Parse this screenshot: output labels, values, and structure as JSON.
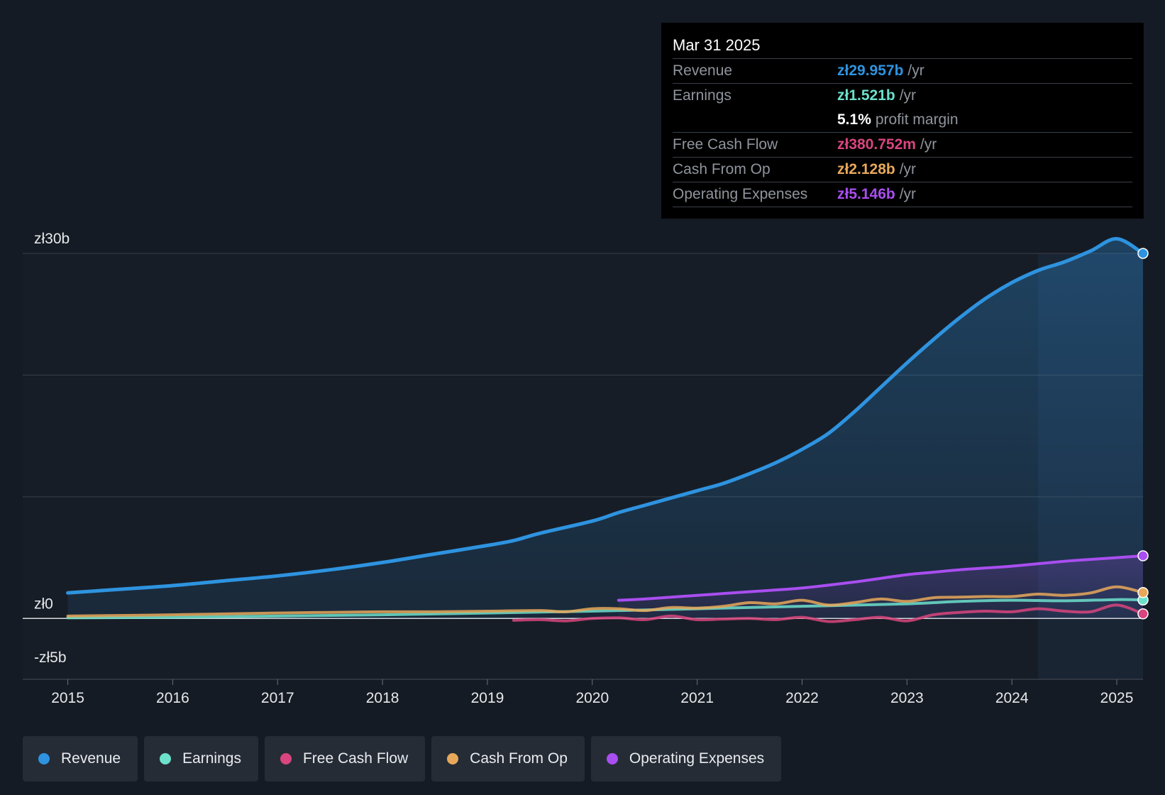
{
  "colors": {
    "revenue": "#2e93e0",
    "earnings": "#6de0cc",
    "fcf": "#d9457e",
    "cfo": "#e8a85a",
    "opex": "#a94ef0",
    "grid": "#3a4048",
    "axis_text": "#e6e8ea"
  },
  "tooltip": {
    "date": "Mar 31 2025",
    "rows": [
      {
        "label": "Revenue",
        "value": "zł29.957b",
        "unit": "/yr",
        "color": "#2e93e0"
      },
      {
        "label": "Earnings",
        "value": "zł1.521b",
        "unit": "/yr",
        "color": "#6de0cc"
      },
      {
        "label": "",
        "value": "5.1%",
        "unit": "profit margin",
        "color": "#ffffff"
      },
      {
        "label": "Free Cash Flow",
        "value": "zł380.752m",
        "unit": "/yr",
        "color": "#d9457e"
      },
      {
        "label": "Cash From Op",
        "value": "zł2.128b",
        "unit": "/yr",
        "color": "#e8a85a"
      },
      {
        "label": "Operating Expenses",
        "value": "zł5.146b",
        "unit": "/yr",
        "color": "#a94ef0"
      }
    ]
  },
  "legend": {
    "items": [
      {
        "label": "Revenue",
        "color": "#2e93e0"
      },
      {
        "label": "Earnings",
        "color": "#6de0cc"
      },
      {
        "label": "Free Cash Flow",
        "color": "#d9457e"
      },
      {
        "label": "Cash From Op",
        "color": "#e8a85a"
      },
      {
        "label": "Operating Expenses",
        "color": "#a94ef0"
      }
    ]
  },
  "chart_data": {
    "type": "area",
    "title": "",
    "xlabel": "",
    "ylabel": "",
    "ylim": [
      -5,
      30
    ],
    "y_tick_labels": [
      {
        "value": 30,
        "label": "zł30b"
      },
      {
        "value": 0,
        "label": "zł0"
      },
      {
        "value": -5,
        "label": "-zł5b"
      }
    ],
    "gridlines": [
      30,
      20,
      10,
      0
    ],
    "xlim": [
      2014.57,
      2025.25
    ],
    "x_ticks": [
      2015,
      2016,
      2017,
      2018,
      2019,
      2020,
      2021,
      2022,
      2023,
      2024,
      2025
    ],
    "x_tick_labels": [
      "2015",
      "2016",
      "2017",
      "2018",
      "2019",
      "2020",
      "2021",
      "2022",
      "2023",
      "2024",
      "2025"
    ],
    "highlight_start": 2024.25,
    "series": [
      {
        "name": "Revenue",
        "key": "revenue",
        "x": [
          2015,
          2015.5,
          2016,
          2016.5,
          2017,
          2017.5,
          2018,
          2018.5,
          2019,
          2019.25,
          2019.5,
          2020,
          2020.25,
          2020.5,
          2021,
          2021.25,
          2021.5,
          2021.75,
          2022,
          2022.25,
          2022.5,
          2022.75,
          2023,
          2023.25,
          2023.5,
          2023.75,
          2024,
          2024.25,
          2024.5,
          2024.75,
          2025,
          2025.25
        ],
        "y": [
          2.1,
          2.4,
          2.7,
          3.1,
          3.5,
          4.0,
          4.6,
          5.3,
          6.0,
          6.4,
          7.0,
          8.0,
          8.7,
          9.3,
          10.5,
          11.1,
          11.9,
          12.8,
          13.9,
          15.2,
          17.0,
          19.0,
          21.0,
          22.9,
          24.7,
          26.3,
          27.6,
          28.6,
          29.3,
          30.2,
          31.2,
          30.0
        ]
      },
      {
        "name": "Earnings",
        "key": "earnings",
        "x": [
          2015,
          2016,
          2017,
          2018,
          2019,
          2020,
          2021,
          2022,
          2023,
          2023.5,
          2024,
          2024.5,
          2025,
          2025.25
        ],
        "y": [
          0.05,
          0.1,
          0.2,
          0.3,
          0.45,
          0.6,
          0.8,
          1.0,
          1.2,
          1.4,
          1.5,
          1.45,
          1.55,
          1.52
        ]
      },
      {
        "name": "Free Cash Flow",
        "key": "fcf",
        "x": [
          2019.25,
          2019.5,
          2019.75,
          2020,
          2020.25,
          2020.5,
          2020.75,
          2021,
          2021.25,
          2021.5,
          2021.75,
          2022,
          2022.25,
          2022.5,
          2022.75,
          2023,
          2023.25,
          2023.5,
          2023.75,
          2024,
          2024.25,
          2024.5,
          2024.75,
          2025,
          2025.25
        ],
        "y": [
          -0.15,
          -0.1,
          -0.2,
          0.0,
          0.05,
          -0.1,
          0.2,
          -0.1,
          -0.05,
          0.0,
          -0.1,
          0.1,
          -0.25,
          -0.1,
          0.1,
          -0.2,
          0.3,
          0.5,
          0.6,
          0.55,
          0.8,
          0.6,
          0.55,
          1.1,
          0.38
        ]
      },
      {
        "name": "Cash From Op",
        "key": "cfo",
        "x": [
          2015,
          2016,
          2017,
          2017.5,
          2018,
          2018.5,
          2019,
          2019.5,
          2019.75,
          2020,
          2020.25,
          2020.5,
          2020.75,
          2021,
          2021.25,
          2021.5,
          2021.75,
          2022,
          2022.25,
          2022.5,
          2022.75,
          2023,
          2023.25,
          2023.5,
          2023.75,
          2024,
          2024.25,
          2024.5,
          2024.75,
          2025,
          2025.25
        ],
        "y": [
          0.2,
          0.3,
          0.45,
          0.5,
          0.55,
          0.55,
          0.6,
          0.65,
          0.55,
          0.8,
          0.8,
          0.65,
          0.9,
          0.85,
          1.0,
          1.3,
          1.2,
          1.5,
          1.1,
          1.3,
          1.6,
          1.4,
          1.7,
          1.75,
          1.8,
          1.8,
          2.0,
          1.9,
          2.1,
          2.6,
          2.13
        ]
      },
      {
        "name": "Operating Expenses",
        "key": "opex",
        "x": [
          2020.25,
          2020.5,
          2021,
          2021.5,
          2022,
          2022.5,
          2023,
          2023.25,
          2023.5,
          2024,
          2024.5,
          2025,
          2025.25
        ],
        "y": [
          1.5,
          1.6,
          1.9,
          2.2,
          2.5,
          3.0,
          3.6,
          3.8,
          4.0,
          4.3,
          4.7,
          5.0,
          5.15
        ]
      }
    ]
  }
}
